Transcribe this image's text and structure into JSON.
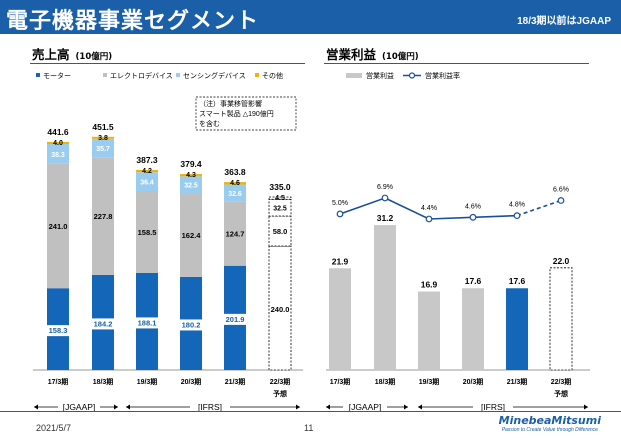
{
  "header": {
    "title": "電子機器事業セグメント",
    "note": "18/3期以前はJGAAP"
  },
  "left_section": {
    "title": "売上高",
    "unit": "(10億円)"
  },
  "right_section": {
    "title": "営業利益",
    "unit": "(10億円)"
  },
  "footer": {
    "date": "2021/5/7",
    "page": "11",
    "logo": "MinebeaMitsumi",
    "tagline": "Passion to Create Value through Difference"
  },
  "annotation": {
    "line1": "（注）事業移管影響",
    "line2": "スマート製品 △190億円",
    "line3": "を含む"
  },
  "colors": {
    "motor": "#1466b8",
    "electro": "#c0c0c0",
    "sensing": "#99ccee",
    "other": "#f0b400",
    "profit_bar": "#c8c8c8",
    "profit_line": "#1a4f9c",
    "brand": "#1a5fa8"
  },
  "chart_data": [
    {
      "type": "bar",
      "title": "売上高",
      "stacked": true,
      "categories": [
        "17/3期",
        "18/3期",
        "19/3期",
        "20/3期",
        "21/3期",
        "22/3期"
      ],
      "category_sublabels": [
        "",
        "",
        "",
        "",
        "",
        "予想"
      ],
      "period_labels": [
        "[JGAAP]",
        "[IFRS]"
      ],
      "series": [
        {
          "name": "モーター",
          "values": [
            158.3,
            184.2,
            188.1,
            180.2,
            201.9,
            240.0
          ]
        },
        {
          "name": "エレクトロデバイス",
          "values": [
            241.0,
            227.8,
            158.5,
            162.4,
            124.7,
            58.0
          ]
        },
        {
          "name": "センシングデバイス",
          "values": [
            38.3,
            35.7,
            36.4,
            32.5,
            32.6,
            32.5
          ]
        },
        {
          "name": "その他",
          "values": [
            4.0,
            3.8,
            4.2,
            4.3,
            4.6,
            4.5
          ]
        }
      ],
      "totals": [
        441.6,
        451.5,
        387.3,
        379.4,
        363.8,
        335.0
      ],
      "value_labels": {
        "motor": [
          "158.3",
          "184.2",
          "188.1",
          "180.2",
          "201.9",
          "240.0"
        ],
        "electro": [
          "241.0",
          "227.8",
          "158.5",
          "162.4",
          "124.7",
          "58.0"
        ],
        "sensing": [
          "38.3",
          "35.7",
          "36.4",
          "32.5",
          "32.6",
          "32.5"
        ],
        "other": [
          "4.0",
          "3.8",
          "4.2",
          "4.3",
          "4.6",
          "4.5"
        ],
        "totals": [
          "441.6",
          "451.5",
          "387.3",
          "379.4",
          "363.8",
          "335.0"
        ]
      },
      "forecast_index": 5,
      "legend_position": "top"
    },
    {
      "type": "bar",
      "title": "営業利益",
      "categories": [
        "17/3期",
        "18/3期",
        "19/3期",
        "20/3期",
        "21/3期",
        "22/3期"
      ],
      "category_sublabels": [
        "",
        "",
        "",
        "",
        "",
        "予想"
      ],
      "period_labels": [
        "[JGAAP]",
        "[IFRS]"
      ],
      "series": [
        {
          "name": "営業利益",
          "type": "bar",
          "values": [
            21.9,
            31.2,
            16.9,
            17.6,
            17.6,
            22.0
          ]
        },
        {
          "name": "営業利益率",
          "type": "line",
          "values": [
            5.0,
            6.9,
            4.4,
            4.6,
            4.8,
            6.6
          ]
        }
      ],
      "value_labels": [
        "21.9",
        "31.2",
        "16.9",
        "17.6",
        "17.6",
        "22.0"
      ],
      "rate_labels": [
        "5.0%",
        "6.9%",
        "4.4%",
        "4.6%",
        "4.8%",
        "6.6%"
      ],
      "highlight_index": 4,
      "forecast_index": 5,
      "legend_position": "top"
    }
  ]
}
